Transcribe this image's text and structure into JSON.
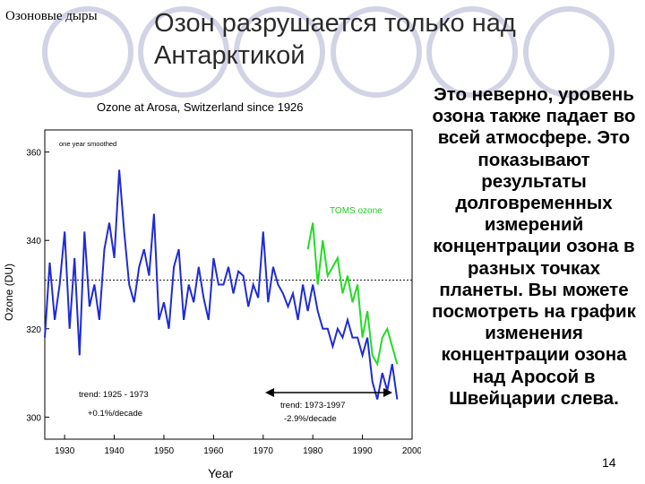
{
  "slide": {
    "topic_label": "Озоновые дыры",
    "title": "Озон разрушается только над Антарктикой",
    "body": "Это неверно, уровень озона также падает во всей атмосфере. Это показывают результаты долговременных измерений концентрации озона в разных точках планеты. Вы можете посмотреть на график изменения концентрации озона над Аросой в Швейцарии слева.",
    "slide_number": "14"
  },
  "chart_data": {
    "type": "line",
    "title": "Ozone at Arosa, Switzerland since 1926",
    "subtitle": "one year smoothed",
    "xlabel": "Year",
    "ylabel": "Ozone (DU)",
    "xlim": [
      1926,
      2000
    ],
    "ylim": [
      295,
      365
    ],
    "x_ticks": [
      1930,
      1940,
      1950,
      1960,
      1970,
      1980,
      1990,
      2000
    ],
    "y_ticks": [
      300,
      320,
      340,
      360
    ],
    "grid": false,
    "reference_line": 331,
    "series": [
      {
        "name": "",
        "color": "#1f2bd6",
        "x": [
          1926,
          1927,
          1928,
          1929,
          1930,
          1931,
          1932,
          1933,
          1934,
          1935,
          1936,
          1937,
          1938,
          1939,
          1940,
          1941,
          1942,
          1943,
          1944,
          1945,
          1946,
          1947,
          1948,
          1949,
          1950,
          1951,
          1952,
          1953,
          1954,
          1955,
          1956,
          1957,
          1958,
          1959,
          1960,
          1961,
          1962,
          1963,
          1964,
          1965,
          1966,
          1967,
          1968,
          1969,
          1970,
          1971,
          1972,
          1973,
          1974,
          1975,
          1976,
          1977,
          1978,
          1979,
          1980,
          1981,
          1982,
          1983,
          1984,
          1985,
          1986,
          1987,
          1988,
          1989,
          1990,
          1991,
          1992,
          1993,
          1994,
          1995,
          1996,
          1997
        ],
        "values": [
          318,
          335,
          322,
          330,
          342,
          320,
          336,
          314,
          342,
          325,
          330,
          322,
          338,
          344,
          336,
          356,
          342,
          330,
          326,
          334,
          338,
          332,
          346,
          322,
          326,
          320,
          334,
          338,
          322,
          330,
          326,
          334,
          327,
          322,
          336,
          330,
          330,
          334,
          328,
          333,
          332,
          325,
          330,
          327,
          342,
          326,
          334,
          330,
          328,
          325,
          328,
          322,
          330,
          324,
          330,
          324,
          320,
          320,
          316,
          320,
          318,
          322,
          318,
          318,
          314,
          318,
          308,
          304,
          310,
          306,
          312,
          304
        ]
      },
      {
        "name": "TOMS ozone",
        "color": "#22dd22",
        "x": [
          1979,
          1980,
          1981,
          1982,
          1983,
          1984,
          1985,
          1986,
          1987,
          1988,
          1989,
          1990,
          1991,
          1992,
          1993,
          1994,
          1995,
          1996,
          1997
        ],
        "values": [
          338,
          344,
          330,
          340,
          332,
          334,
          336,
          328,
          332,
          326,
          330,
          318,
          324,
          314,
          312,
          318,
          320,
          316,
          312
        ]
      }
    ],
    "annotations": [
      {
        "text_lines": [
          "trend: 1925 - 1973",
          "+0.1%/decade"
        ]
      },
      {
        "text_lines": [
          "trend: 1973-1997",
          "-2.9%/decade"
        ]
      }
    ]
  }
}
